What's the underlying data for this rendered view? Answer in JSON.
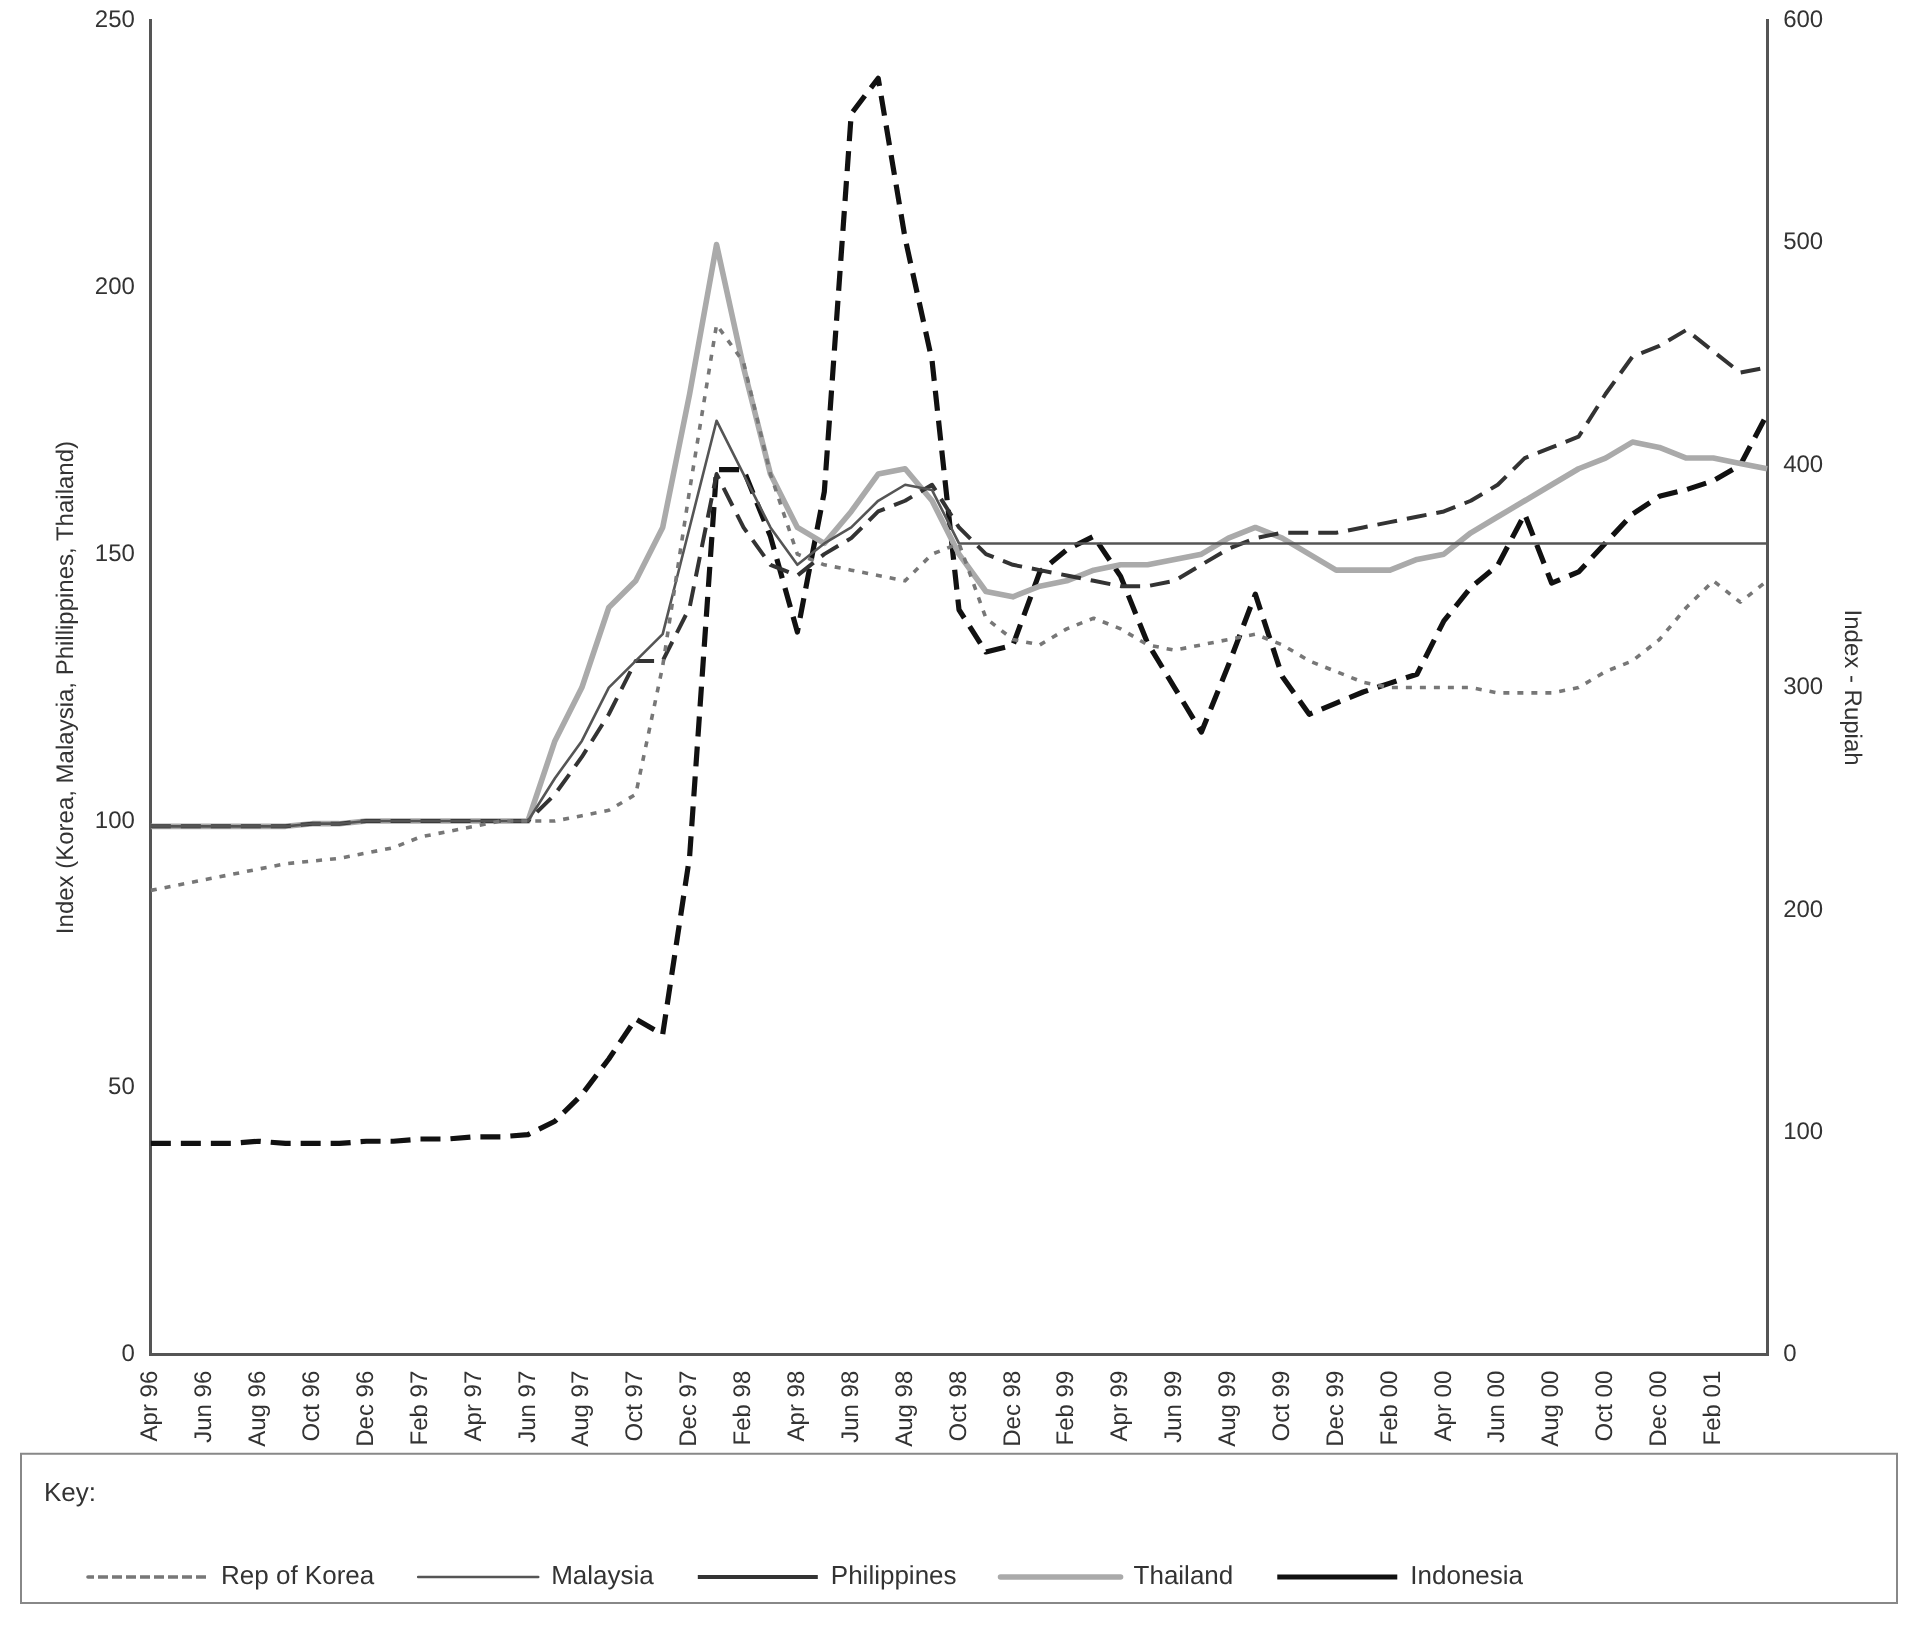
{
  "chart_data": {
    "type": "line",
    "ylabel": "Index (Korea, Malaysia, Phillippines, Thailand)",
    "y2label": "Index - Rupiah",
    "legend_title": "Key:",
    "legend": "bottom",
    "grid": false,
    "marker": "none",
    "categories": [
      "Apr 96",
      null,
      "Jun 96",
      null,
      "Aug 96",
      null,
      "Oct 96",
      null,
      "Dec 96",
      null,
      "Feb 97",
      null,
      "Apr 97",
      null,
      "Jun 97",
      null,
      "Aug 97",
      null,
      "Oct 97",
      null,
      "Dec 97",
      null,
      "Feb 98",
      null,
      "Apr 98",
      null,
      "Jun 98",
      null,
      "Aug 98",
      null,
      "Oct 98",
      null,
      "Dec 98",
      null,
      "Feb 99",
      null,
      "Apr 99",
      null,
      "Jun 99",
      null,
      "Aug 99",
      null,
      "Oct 99",
      null,
      "Dec 99",
      null,
      "Feb 00",
      null,
      "Apr 00",
      null,
      "Jun 00",
      null,
      "Aug 00",
      null,
      "Oct 00",
      null,
      "Dec 00",
      null,
      "Feb 01",
      null,
      null
    ],
    "ylim": [
      0,
      250
    ],
    "yticks": [
      0,
      50,
      100,
      150,
      200,
      250
    ],
    "y2lim": [
      0,
      600
    ],
    "y2ticks": [
      0,
      100,
      200,
      300,
      400,
      500,
      600
    ],
    "series": [
      {
        "name": "Rep of Korea",
        "color": "#777777",
        "line_style": "dotted",
        "values": [
          87,
          88,
          89,
          90,
          91,
          92,
          92.5,
          93,
          94,
          95,
          97,
          98,
          99,
          100,
          100,
          100,
          101,
          102,
          105,
          129,
          162,
          193,
          186,
          165,
          150,
          148,
          147,
          146,
          145,
          150,
          152,
          138,
          134,
          133,
          136,
          138,
          136,
          133,
          132,
          133,
          134,
          135,
          133,
          130,
          128,
          126,
          125,
          125,
          125,
          125,
          124,
          124,
          124,
          125,
          128,
          130,
          134,
          140,
          145,
          141,
          145
        ]
      },
      {
        "name": "Malaysia",
        "color": "#555555",
        "line_style": "solid",
        "values": [
          99,
          99,
          99,
          99,
          99,
          99,
          99.5,
          99.5,
          100,
          100,
          100,
          100,
          100,
          100,
          100,
          108,
          115,
          125,
          130,
          135,
          155,
          175,
          165,
          155,
          148,
          152,
          155,
          160,
          163,
          162,
          152,
          152,
          152,
          152,
          152,
          152,
          152,
          152,
          152,
          152,
          152,
          152,
          152,
          152,
          152,
          152,
          152,
          152,
          152,
          152,
          152,
          152,
          152,
          152,
          152,
          152,
          152,
          152,
          152,
          152,
          152
        ]
      },
      {
        "name": "Philippines",
        "color": "#333333",
        "line_style": "dashed",
        "values": [
          99,
          99,
          99,
          99,
          99,
          99,
          99.5,
          99.5,
          100,
          100,
          100,
          100,
          100,
          100,
          100,
          105,
          112,
          120,
          130,
          130,
          140,
          165,
          155,
          148,
          146,
          150,
          153,
          158,
          160,
          163,
          155,
          150,
          148,
          147,
          146,
          145,
          144,
          144,
          145,
          148,
          151,
          153,
          154,
          154,
          154,
          155,
          156,
          157,
          158,
          160,
          163,
          168,
          170,
          172,
          180,
          187,
          189,
          192,
          188,
          184,
          185
        ]
      },
      {
        "name": "Thailand",
        "color": "#aaaaaa",
        "line_style": "solid",
        "values": [
          99,
          99,
          99,
          99,
          99,
          99,
          99.5,
          99.5,
          100,
          100,
          100,
          100,
          100,
          100,
          100,
          115,
          125,
          140,
          145,
          155,
          180,
          208,
          185,
          165,
          155,
          152,
          158,
          165,
          166,
          160,
          150,
          143,
          142,
          144,
          145,
          147,
          148,
          148,
          149,
          150,
          153,
          155,
          153,
          150,
          147,
          147,
          147,
          149,
          150,
          154,
          157,
          160,
          163,
          166,
          168,
          171,
          170,
          168,
          168,
          167,
          166
        ]
      },
      {
        "name": "Indonesia",
        "color": "#111111",
        "line_style": "dashed",
        "axis": "y2",
        "values": [
          95,
          95,
          95,
          95,
          96,
          95,
          95,
          95,
          96,
          96,
          97,
          97,
          98,
          98,
          99,
          105,
          117,
          133,
          151,
          144,
          224,
          398,
          398,
          368,
          325,
          388,
          558,
          574,
          502,
          447,
          335,
          316,
          319,
          352,
          362,
          368,
          350,
          320,
          300,
          280,
          310,
          342,
          305,
          288,
          293,
          298,
          302,
          306,
          330,
          345,
          355,
          378,
          347,
          352,
          365,
          378,
          386,
          389,
          393,
          400,
          423
        ]
      }
    ]
  }
}
